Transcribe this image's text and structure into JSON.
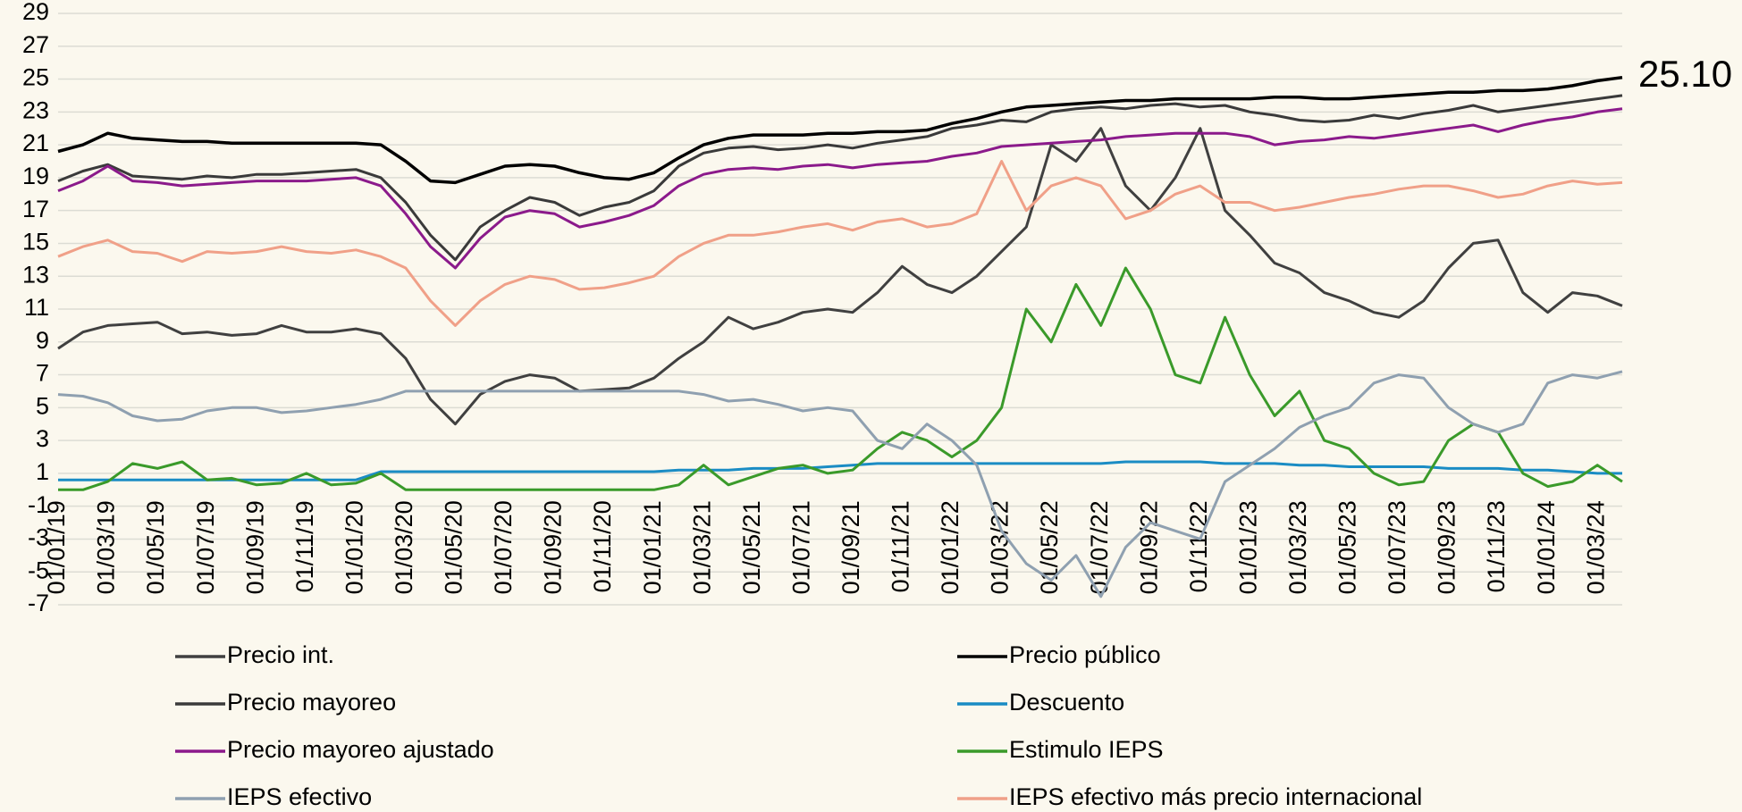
{
  "chart_data": {
    "type": "line",
    "annotation": "25.10",
    "categories": [
      "01/01/19",
      null,
      "01/03/19",
      null,
      "01/05/19",
      null,
      "01/07/19",
      null,
      "01/09/19",
      null,
      "01/11/19",
      null,
      "01/01/20",
      null,
      "01/03/20",
      null,
      "01/05/20",
      null,
      "01/07/20",
      null,
      "01/09/20",
      null,
      "01/11/20",
      null,
      "01/01/21",
      null,
      "01/03/21",
      null,
      "01/05/21",
      null,
      "01/07/21",
      null,
      "01/09/21",
      null,
      "01/11/21",
      null,
      "01/01/22",
      null,
      "01/03/22",
      null,
      "01/05/22",
      null,
      "01/07/22",
      null,
      "01/09/22",
      null,
      "01/11/22",
      null,
      "01/01/23",
      null,
      "01/03/23",
      null,
      "01/05/23",
      null,
      "01/07/23",
      null,
      "01/09/23",
      null,
      "01/11/23",
      null,
      "01/01/24",
      null,
      "01/03/24",
      null
    ],
    "ylim": [
      -7,
      29
    ],
    "yticks": [
      -7,
      -5,
      -3,
      -1,
      1,
      3,
      5,
      7,
      9,
      11,
      13,
      15,
      17,
      19,
      21,
      23,
      25,
      27,
      29
    ],
    "grid": true,
    "series": [
      {
        "name": "Precio int.",
        "color": "#404040",
        "values": [
          8.6,
          9.6,
          10.0,
          10.1,
          10.2,
          9.5,
          9.6,
          9.4,
          9.5,
          10.0,
          9.6,
          9.6,
          9.8,
          9.5,
          8.0,
          5.5,
          4.0,
          5.8,
          6.6,
          7.0,
          6.8,
          6.0,
          6.1,
          6.2,
          6.8,
          8.0,
          9.0,
          10.5,
          9.8,
          10.2,
          10.8,
          11.0,
          10.8,
          12.0,
          13.6,
          12.5,
          12.0,
          13.0,
          14.5,
          16.0,
          21.0,
          20.0,
          22.0,
          18.5,
          17.0,
          19.0,
          22.0,
          17.0,
          15.5,
          13.8,
          13.2,
          12.0,
          11.5,
          10.8,
          10.5,
          11.5,
          13.5,
          15.0,
          15.2,
          12.0,
          10.8,
          12.0,
          11.8,
          11.2
        ]
      },
      {
        "name": "Precio público",
        "color": "#000000",
        "values": [
          20.6,
          21.0,
          21.7,
          21.4,
          21.3,
          21.2,
          21.2,
          21.1,
          21.1,
          21.1,
          21.1,
          21.1,
          21.1,
          21.0,
          20.0,
          18.8,
          18.7,
          19.2,
          19.7,
          19.8,
          19.7,
          19.3,
          19.0,
          18.9,
          19.3,
          20.2,
          21.0,
          21.4,
          21.6,
          21.6,
          21.6,
          21.7,
          21.7,
          21.8,
          21.8,
          21.9,
          22.3,
          22.6,
          23.0,
          23.3,
          23.4,
          23.5,
          23.6,
          23.7,
          23.7,
          23.8,
          23.8,
          23.8,
          23.8,
          23.9,
          23.9,
          23.8,
          23.8,
          23.9,
          24.0,
          24.1,
          24.2,
          24.2,
          24.3,
          24.3,
          24.4,
          24.6,
          24.9,
          25.1
        ]
      },
      {
        "name": "Precio mayoreo",
        "color": "#3a3a3a",
        "values": [
          18.8,
          19.4,
          19.8,
          19.1,
          19.0,
          18.9,
          19.1,
          19.0,
          19.2,
          19.2,
          19.3,
          19.4,
          19.5,
          19.0,
          17.5,
          15.5,
          14.0,
          16.0,
          17.0,
          17.8,
          17.5,
          16.7,
          17.2,
          17.5,
          18.2,
          19.7,
          20.5,
          20.8,
          20.9,
          20.7,
          20.8,
          21.0,
          20.8,
          21.1,
          21.3,
          21.5,
          22.0,
          22.2,
          22.5,
          22.4,
          23.0,
          23.2,
          23.3,
          23.2,
          23.4,
          23.5,
          23.3,
          23.4,
          23.0,
          22.8,
          22.5,
          22.4,
          22.5,
          22.8,
          22.6,
          22.9,
          23.1,
          23.4,
          23.0,
          23.2,
          23.4,
          23.6,
          23.8,
          24.0
        ]
      },
      {
        "name": "Descuento",
        "color": "#1a8cc4",
        "values": [
          0.6,
          0.6,
          0.6,
          0.6,
          0.6,
          0.6,
          0.6,
          0.6,
          0.6,
          0.6,
          0.6,
          0.6,
          0.6,
          1.1,
          1.1,
          1.1,
          1.1,
          1.1,
          1.1,
          1.1,
          1.1,
          1.1,
          1.1,
          1.1,
          1.1,
          1.2,
          1.2,
          1.2,
          1.3,
          1.3,
          1.3,
          1.4,
          1.5,
          1.6,
          1.6,
          1.6,
          1.6,
          1.6,
          1.6,
          1.6,
          1.6,
          1.6,
          1.6,
          1.7,
          1.7,
          1.7,
          1.7,
          1.6,
          1.6,
          1.6,
          1.5,
          1.5,
          1.4,
          1.4,
          1.4,
          1.4,
          1.3,
          1.3,
          1.3,
          1.2,
          1.2,
          1.1,
          1.0,
          1.0
        ]
      },
      {
        "name": "Precio mayoreo ajustado",
        "color": "#8b1a8b",
        "values": [
          18.2,
          18.8,
          19.7,
          18.8,
          18.7,
          18.5,
          18.6,
          18.7,
          18.8,
          18.8,
          18.8,
          18.9,
          19.0,
          18.5,
          16.8,
          14.8,
          13.5,
          15.3,
          16.6,
          17.0,
          16.8,
          16.0,
          16.3,
          16.7,
          17.3,
          18.5,
          19.2,
          19.5,
          19.6,
          19.5,
          19.7,
          19.8,
          19.6,
          19.8,
          19.9,
          20.0,
          20.3,
          20.5,
          20.9,
          21.0,
          21.1,
          21.2,
          21.3,
          21.5,
          21.6,
          21.7,
          21.7,
          21.7,
          21.5,
          21.0,
          21.2,
          21.3,
          21.5,
          21.4,
          21.6,
          21.8,
          22.0,
          22.2,
          21.8,
          22.2,
          22.5,
          22.7,
          23.0,
          23.2
        ]
      },
      {
        "name": "Estimulo IEPS",
        "color": "#3a9a2a",
        "values": [
          0,
          0,
          0.5,
          1.6,
          1.3,
          1.7,
          0.6,
          0.7,
          0.3,
          0.4,
          1.0,
          0.3,
          0.4,
          1.0,
          0,
          0,
          0,
          0,
          0,
          0,
          0,
          0,
          0,
          0,
          0,
          0.3,
          1.5,
          0.3,
          0.8,
          1.3,
          1.5,
          1.0,
          1.2,
          2.5,
          3.5,
          3.0,
          2.0,
          3.0,
          5.0,
          11.0,
          9.0,
          12.5,
          10.0,
          13.5,
          11.0,
          7.0,
          6.5,
          10.5,
          7.0,
          4.5,
          6.0,
          3.0,
          2.5,
          1.0,
          0.3,
          0.5,
          3.0,
          4.0,
          3.5,
          1.0,
          0.2,
          0.5,
          1.5,
          0.5
        ]
      },
      {
        "name": "IEPS efectivo",
        "color": "#8fa0b0",
        "values": [
          5.8,
          5.7,
          5.3,
          4.5,
          4.2,
          4.3,
          4.8,
          5.0,
          5.0,
          4.7,
          4.8,
          5.0,
          5.2,
          5.5,
          6.0,
          6.0,
          6.0,
          6.0,
          6.0,
          6.0,
          6.0,
          6.0,
          6.0,
          6.0,
          6.0,
          6.0,
          5.8,
          5.4,
          5.5,
          5.2,
          4.8,
          5.0,
          4.8,
          3.0,
          2.5,
          4.0,
          3.0,
          1.5,
          -2.5,
          -4.5,
          -5.5,
          -4.0,
          -6.5,
          -3.5,
          -2.0,
          -2.5,
          -3.0,
          0.5,
          1.5,
          2.5,
          3.8,
          4.5,
          5.0,
          6.5,
          7.0,
          6.8,
          5.0,
          4.0,
          3.5,
          4.0,
          6.5,
          7.0,
          6.8,
          7.2
        ]
      },
      {
        "name": "IEPS efectivo más precio internacional",
        "color": "#f0a088",
        "values": [
          14.2,
          14.8,
          15.2,
          14.5,
          14.4,
          13.9,
          14.5,
          14.4,
          14.5,
          14.8,
          14.5,
          14.4,
          14.6,
          14.2,
          13.5,
          11.5,
          10.0,
          11.5,
          12.5,
          13.0,
          12.8,
          12.2,
          12.3,
          12.6,
          13.0,
          14.2,
          15.0,
          15.5,
          15.5,
          15.7,
          16.0,
          16.2,
          15.8,
          16.3,
          16.5,
          16.0,
          16.2,
          16.8,
          20.0,
          17.0,
          18.5,
          19.0,
          18.5,
          16.5,
          17.0,
          18.0,
          18.5,
          17.5,
          17.5,
          17.0,
          17.2,
          17.5,
          17.8,
          18.0,
          18.3,
          18.5,
          18.5,
          18.2,
          17.8,
          18.0,
          18.5,
          18.8,
          18.6,
          18.7
        ]
      }
    ]
  }
}
